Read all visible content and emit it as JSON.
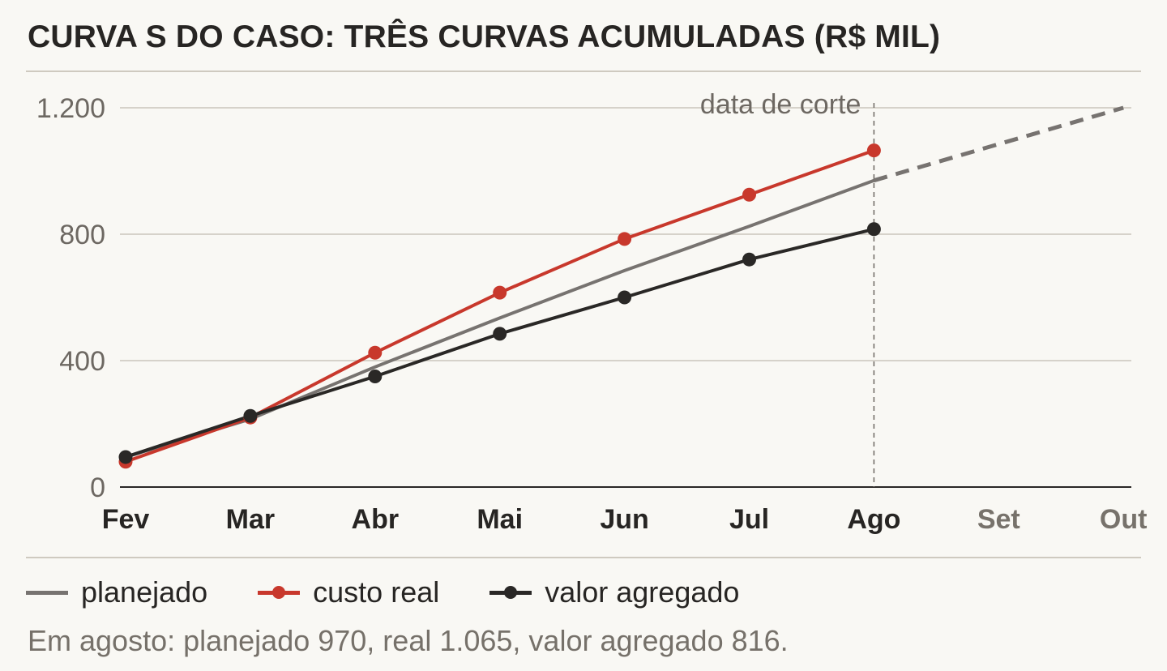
{
  "title": "CURVA S DO CASO: TRÊS CURVAS ACUMULADAS (R$ MIL)",
  "note": "Em agosto: planejado 970, real 1.065, valor agregado 816.",
  "legend": [
    {
      "label": "planejado",
      "color": "#777370",
      "marker": false
    },
    {
      "label": "custo real",
      "color": "#c8382c",
      "marker": true
    },
    {
      "label": "valor agregado",
      "color": "#2a2826",
      "marker": true
    }
  ],
  "chart_data": {
    "type": "line",
    "categories": [
      "Fev",
      "Mar",
      "Abr",
      "Mai",
      "Jun",
      "Jul",
      "Ago",
      "Set",
      "Out"
    ],
    "category_colors": [
      "#272523",
      "#272523",
      "#272523",
      "#272523",
      "#272523",
      "#272523",
      "#272523",
      "#77726b",
      "#77726b"
    ],
    "ylim": [
      0,
      1200
    ],
    "yticks": [
      0,
      400,
      800,
      1200
    ],
    "ytick_labels": [
      "0",
      "400",
      "800",
      "1.200"
    ],
    "grid": true,
    "cutoff": {
      "category": "Ago",
      "label": "data de corte"
    },
    "series": [
      {
        "name": "planejado",
        "color": "#777370",
        "markers": false,
        "values": [
          95,
          215,
          380,
          535,
          685,
          825,
          970,
          null,
          null
        ],
        "projection": [
          null,
          null,
          null,
          null,
          null,
          null,
          970,
          1085,
          1200
        ]
      },
      {
        "name": "custo real",
        "color": "#c8382c",
        "markers": true,
        "values": [
          80,
          220,
          425,
          615,
          785,
          925,
          1065,
          null,
          null
        ]
      },
      {
        "name": "valor agregado",
        "color": "#2a2826",
        "markers": true,
        "values": [
          95,
          225,
          350,
          485,
          600,
          720,
          816,
          null,
          null
        ]
      }
    ]
  }
}
